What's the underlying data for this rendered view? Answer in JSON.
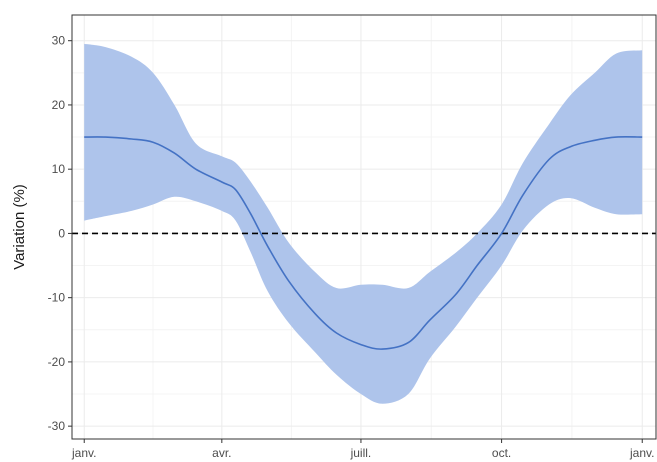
{
  "chart_data": {
    "type": "line",
    "title": "",
    "xlabel": "",
    "ylabel": "Variation (%)",
    "xlim": [
      "2000-12-24",
      "2002-01-10"
    ],
    "ylim": [
      -32,
      34
    ],
    "grid": true,
    "x_ticks": [
      {
        "date": "2001-01-01",
        "label": "janv."
      },
      {
        "date": "2001-04-01",
        "label": "avr."
      },
      {
        "date": "2001-07-01",
        "label": "juill."
      },
      {
        "date": "2001-10-01",
        "label": "oct."
      },
      {
        "date": "2002-01-01",
        "label": "janv."
      }
    ],
    "y_ticks": [
      -30,
      -20,
      -10,
      0,
      10,
      20,
      30
    ],
    "reference_line": {
      "y": 0,
      "style": "dashed",
      "color": "#000000"
    },
    "series": [
      {
        "color": "#4472c4",
        "band_color": "#aec4eb",
        "x": [
          "2001-01-01",
          "2001-01-15",
          "2001-02-01",
          "2001-02-15",
          "2001-03-01",
          "2001-03-15",
          "2001-04-01",
          "2001-04-10",
          "2001-04-20",
          "2001-05-01",
          "2001-05-15",
          "2001-06-01",
          "2001-06-15",
          "2001-07-01",
          "2001-07-15",
          "2001-08-01",
          "2001-08-15",
          "2001-09-01",
          "2001-09-15",
          "2001-10-01",
          "2001-10-15",
          "2001-11-01",
          "2001-11-15",
          "2001-12-01",
          "2001-12-15",
          "2002-01-01"
        ],
        "y": [
          15,
          15,
          14.7,
          14.2,
          12.5,
          10,
          8,
          6.8,
          3,
          -2,
          -7.5,
          -12.5,
          -15.5,
          -17.3,
          -18,
          -17,
          -13.5,
          -9.5,
          -5,
          0,
          6,
          11.5,
          13.5,
          14.5,
          15,
          15
        ],
        "lower": [
          2,
          2.7,
          3.5,
          4.5,
          5.7,
          5,
          3.5,
          2,
          -3,
          -9,
          -14,
          -18.5,
          -22,
          -25,
          -26.5,
          -25,
          -19.5,
          -14.5,
          -10,
          -5,
          0.5,
          4.5,
          5.5,
          4,
          3,
          3
        ],
        "upper": [
          29.5,
          29,
          27.5,
          25,
          20,
          14,
          12,
          11,
          8,
          4,
          -1.5,
          -6,
          -8.5,
          -8,
          -8,
          -8.5,
          -6,
          -3,
          0,
          4.5,
          11,
          17,
          21.5,
          25,
          28,
          28.5
        ]
      }
    ]
  }
}
